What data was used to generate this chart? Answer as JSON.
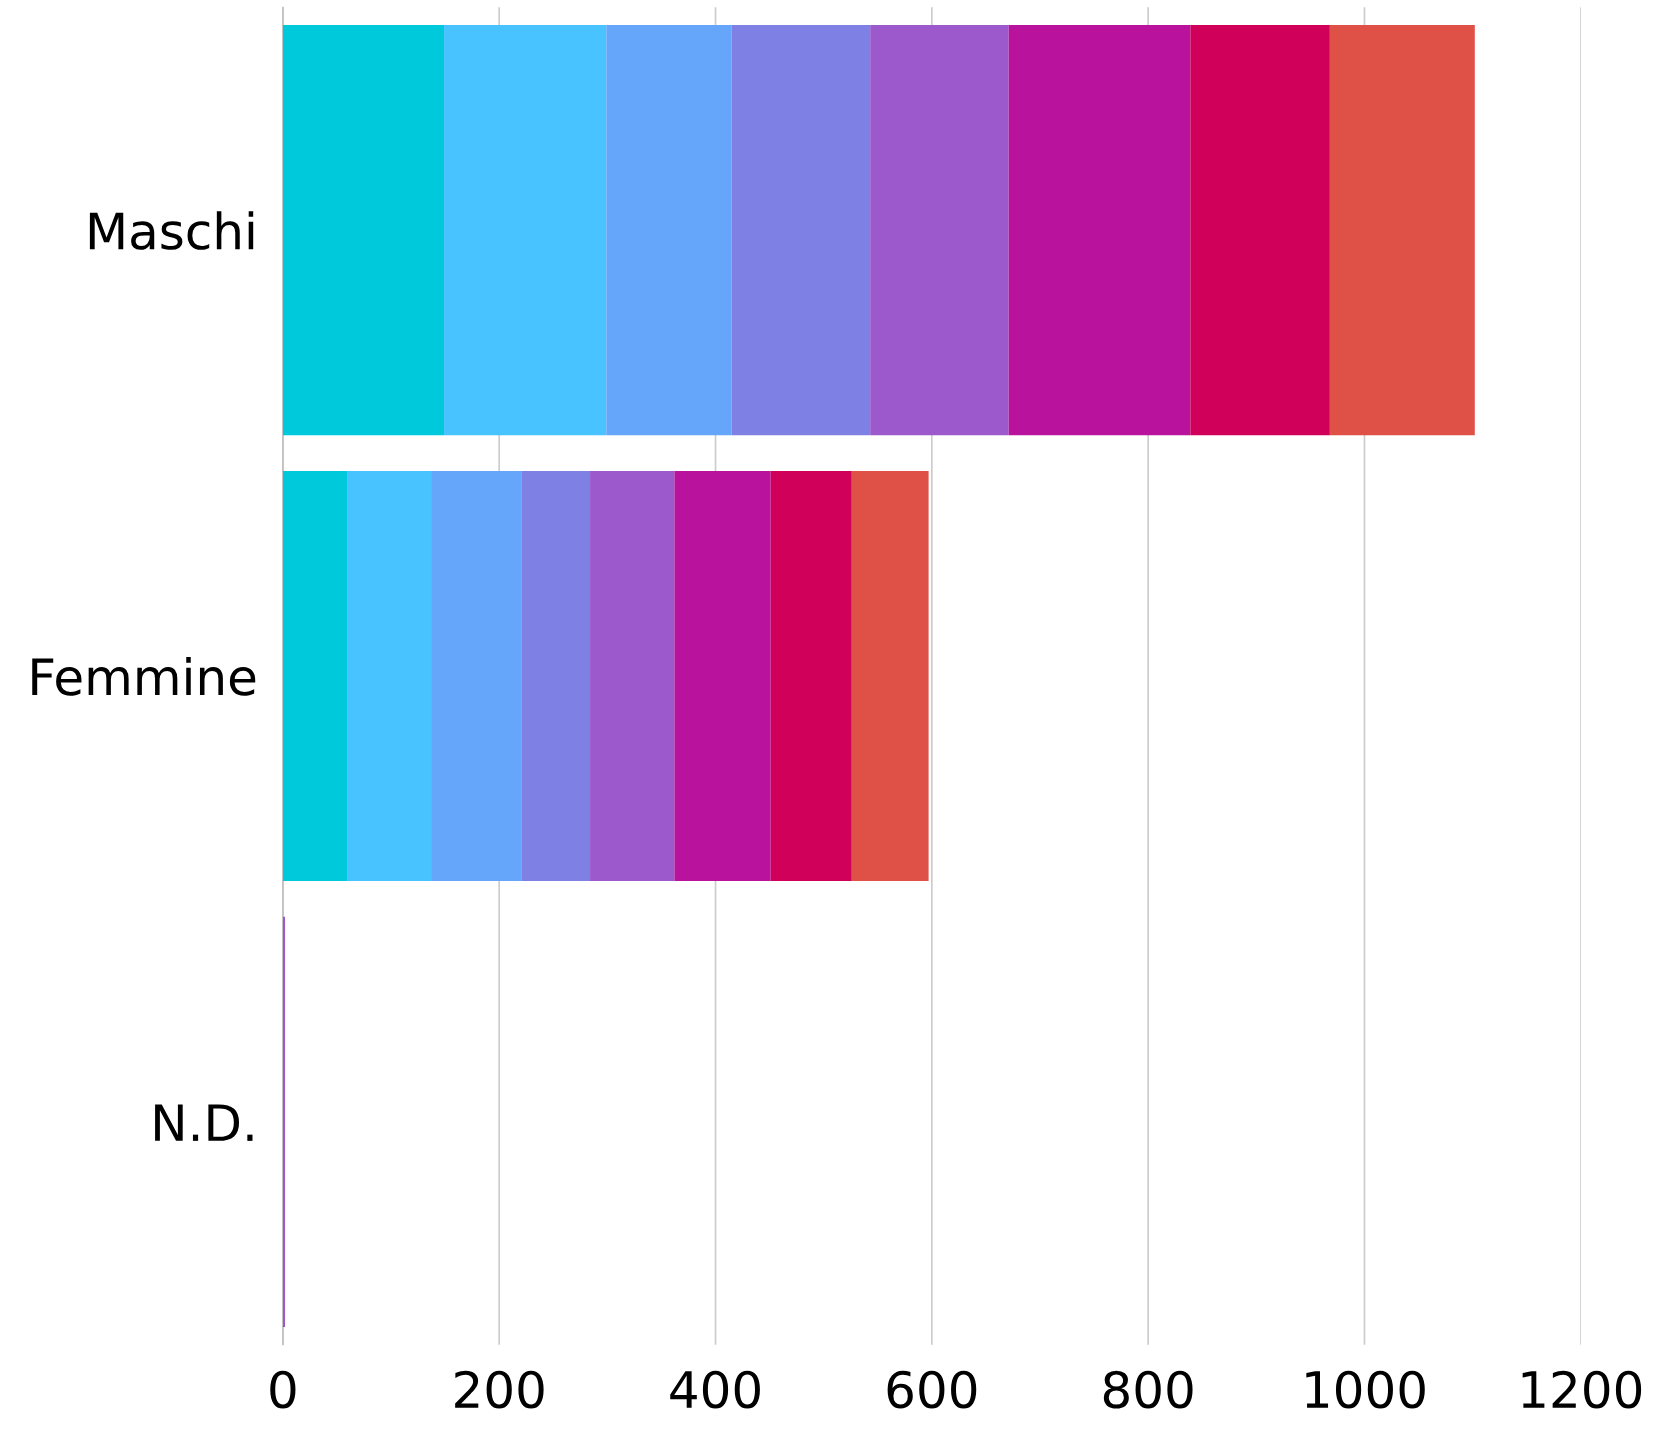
{
  "chart_data": {
    "type": "bar",
    "orientation": "horizontal",
    "stacked": true,
    "categories": [
      "Maschi",
      "Femmine",
      "N.D."
    ],
    "series": [
      {
        "color": "#00c9dc",
        "values": [
          149,
          60,
          0
        ]
      },
      {
        "color": "#48c3ff",
        "values": [
          150,
          77,
          0
        ]
      },
      {
        "color": "#66a6fa",
        "values": [
          116,
          84,
          0
        ]
      },
      {
        "color": "#7f80e4",
        "values": [
          128,
          63,
          0
        ]
      },
      {
        "color": "#9b59cc",
        "values": [
          128,
          78,
          2
        ]
      },
      {
        "color": "#b9139e",
        "values": [
          168,
          89,
          0
        ]
      },
      {
        "color": "#d0005a",
        "values": [
          129,
          75,
          0
        ]
      },
      {
        "color": "#df5046",
        "values": [
          134,
          71,
          0
        ]
      }
    ],
    "xlim": [
      0,
      1200
    ],
    "xticks": [
      0,
      200,
      400,
      600,
      800,
      1000,
      1200
    ],
    "grid": "x"
  }
}
